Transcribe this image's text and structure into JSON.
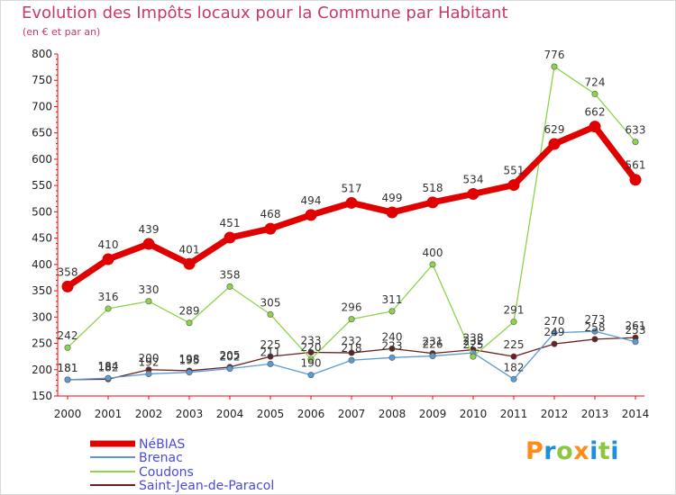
{
  "title": "Evolution des Impôts locaux pour la Commune par Habitant",
  "subtitle": "(en € et par an)",
  "logo": [
    "P",
    "r",
    "o",
    "x",
    "i",
    "t",
    "i"
  ],
  "logo_colors": [
    "#ff8c1a",
    "#1e90d8",
    "#8dc63f",
    "#ff8c1a",
    "#1e90d8",
    "#8dc63f",
    "#1e90d8"
  ],
  "chart_data": {
    "type": "line",
    "x": [
      2000,
      2001,
      2002,
      2003,
      2004,
      2005,
      2006,
      2007,
      2008,
      2009,
      2010,
      2011,
      2012,
      2013,
      2014
    ],
    "ylim": [
      150,
      800
    ],
    "yticks": [
      150,
      200,
      250,
      300,
      350,
      400,
      450,
      500,
      550,
      600,
      650,
      700,
      750,
      800
    ],
    "grid": false,
    "legend_position": "bottom-left",
    "series": [
      {
        "name": "NéBIAS",
        "color": "#e00000",
        "values": [
          358,
          410,
          439,
          401,
          451,
          468,
          494,
          517,
          499,
          518,
          534,
          551,
          629,
          662,
          561
        ]
      },
      {
        "name": "Brenac",
        "color": "#5a9bd5",
        "values": [
          181,
          184,
          192,
          195,
          202,
          211,
          190,
          218,
          223,
          226,
          232,
          182,
          270,
          273,
          253
        ]
      },
      {
        "name": "Coudons",
        "color": "#8cd44a",
        "values": [
          242,
          316,
          330,
          289,
          358,
          305,
          220,
          296,
          311,
          400,
          225,
          291,
          776,
          724,
          633
        ]
      },
      {
        "name": "Saint-Jean-de-Paracol",
        "color": "#6b1f1f",
        "values": [
          181,
          182,
          200,
          198,
          205,
          225,
          233,
          232,
          240,
          231,
          238,
          225,
          249,
          258,
          261
        ]
      }
    ]
  }
}
